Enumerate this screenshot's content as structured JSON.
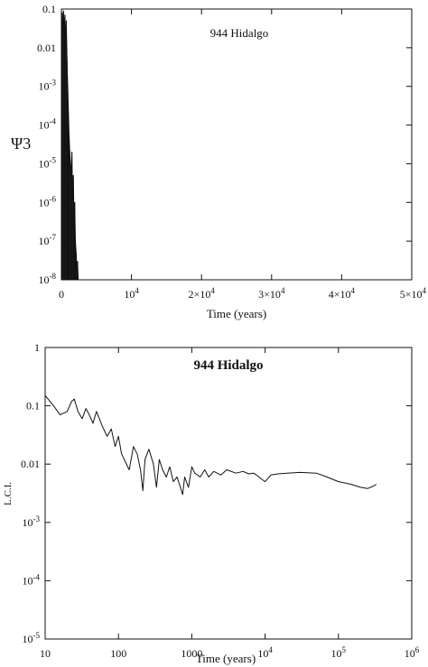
{
  "chart_data": [
    {
      "type": "line",
      "annotation": "944 Hidalgo",
      "xlabel": "Time (years)",
      "ylabel": "Ψ3",
      "xlim": [
        0,
        50000
      ],
      "ylim": [
        1e-08,
        0.1
      ],
      "yscale": "log",
      "grid": false,
      "x_ticks": [
        {
          "value": 0,
          "label": "0"
        },
        {
          "value": 10000,
          "label": "10^4"
        },
        {
          "value": 20000,
          "label": "2×10^4"
        },
        {
          "value": 30000,
          "label": "3×10^4"
        },
        {
          "value": 40000,
          "label": "4×10^4"
        },
        {
          "value": 50000,
          "label": "5×10^4"
        }
      ],
      "y_ticks": [
        {
          "value": 0.1,
          "label": "0.1"
        },
        {
          "value": 0.01,
          "label": "0.01"
        },
        {
          "value": 0.001,
          "label": "10^-3"
        },
        {
          "value": 0.0001,
          "label": "10^-4"
        },
        {
          "value": 1e-05,
          "label": "10^-5"
        },
        {
          "value": 1e-06,
          "label": "10^-6"
        },
        {
          "value": 1e-07,
          "label": "10^-7"
        },
        {
          "value": 1e-08,
          "label": "10^-8"
        }
      ],
      "series": [
        {
          "x": [
            0,
            100,
            200,
            300,
            400,
            500,
            600,
            700,
            800,
            900,
            1000,
            1100,
            1200,
            1300,
            1400,
            1500,
            1600,
            1700,
            1800,
            1900,
            2000,
            2100,
            2200,
            2300,
            2400,
            2500
          ],
          "y": [
            0.05,
            0.08,
            0.02,
            0.09,
            0.03,
            0.07,
            0.01,
            0.05,
            0.005,
            0.001,
            0.0002,
            5e-05,
            2e-05,
            1e-05,
            3e-06,
            2e-05,
            1e-06,
            5e-06,
            3e-07,
            1e-06,
            1e-07,
            5e-08,
            2e-08,
            3e-08,
            1e-08,
            1e-08
          ]
        }
      ]
    },
    {
      "type": "line",
      "title": "944 Hidalgo",
      "xlabel": "Time (years)",
      "ylabel": "L.C.I.",
      "xlim": [
        10,
        1000000
      ],
      "ylim": [
        1e-05,
        1
      ],
      "xscale": "log",
      "yscale": "log",
      "grid": false,
      "x_ticks": [
        {
          "value": 10,
          "label": "10"
        },
        {
          "value": 100,
          "label": "100"
        },
        {
          "value": 1000,
          "label": "1000"
        },
        {
          "value": 10000,
          "label": "10^4"
        },
        {
          "value": 100000,
          "label": "10^5"
        },
        {
          "value": 1000000,
          "label": "10^6"
        }
      ],
      "y_ticks": [
        {
          "value": 1,
          "label": "1"
        },
        {
          "value": 0.1,
          "label": "0.1"
        },
        {
          "value": 0.01,
          "label": "0.01"
        },
        {
          "value": 0.001,
          "label": "10^-3"
        },
        {
          "value": 0.0001,
          "label": "10^-4"
        },
        {
          "value": 1e-05,
          "label": "10^-5"
        }
      ],
      "series": [
        {
          "x": [
            10,
            13,
            16,
            20,
            23,
            25,
            28,
            32,
            36,
            40,
            45,
            50,
            55,
            60,
            70,
            80,
            90,
            100,
            110,
            120,
            140,
            160,
            180,
            200,
            215,
            230,
            260,
            300,
            330,
            360,
            400,
            450,
            500,
            560,
            630,
            700,
            750,
            800,
            900,
            1000,
            1100,
            1300,
            1500,
            1700,
            2000,
            2500,
            3000,
            4000,
            5000,
            6000,
            7000,
            8000,
            9000,
            10000,
            12000,
            15000,
            20000,
            30000,
            50000,
            70000,
            100000,
            150000,
            200000,
            250000,
            300000,
            330000
          ],
          "y": [
            0.15,
            0.1,
            0.07,
            0.08,
            0.12,
            0.13,
            0.08,
            0.06,
            0.09,
            0.07,
            0.05,
            0.08,
            0.06,
            0.045,
            0.03,
            0.04,
            0.02,
            0.03,
            0.015,
            0.012,
            0.008,
            0.02,
            0.015,
            0.008,
            0.0035,
            0.012,
            0.018,
            0.01,
            0.004,
            0.012,
            0.008,
            0.006,
            0.009,
            0.005,
            0.006,
            0.004,
            0.003,
            0.006,
            0.004,
            0.009,
            0.007,
            0.006,
            0.008,
            0.006,
            0.0075,
            0.0065,
            0.008,
            0.007,
            0.0075,
            0.0068,
            0.007,
            0.0062,
            0.0055,
            0.005,
            0.0065,
            0.0068,
            0.007,
            0.0072,
            0.007,
            0.006,
            0.005,
            0.0045,
            0.004,
            0.0038,
            0.0042,
            0.0045
          ]
        }
      ]
    }
  ]
}
